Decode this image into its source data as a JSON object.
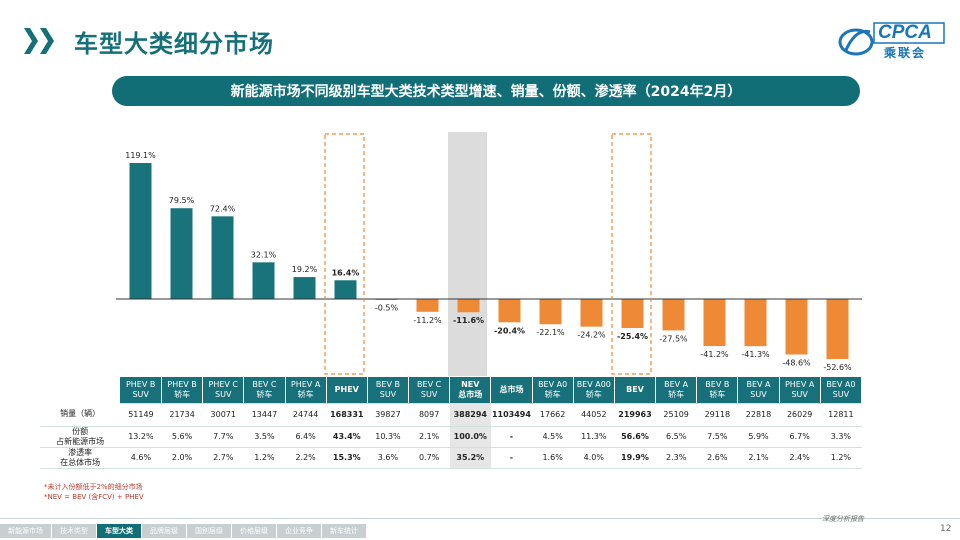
{
  "header": {
    "title": "车型大类细分市场"
  },
  "logo": {
    "text": "CPCA",
    "sub": "乘联会",
    "color": "#1a76b8"
  },
  "banner": {
    "text": "新能源市场不同级别车型大类技术类型增速、销量、份额、渗透率（2024年2月）"
  },
  "chart_data": {
    "type": "bar",
    "title": "新能源市场不同级别车型大类技术类型增速、销量、份额、渗透率（2024年2月）",
    "categories": [
      "PHEV B SUV",
      "PHEV B 轿车",
      "PHEV C SUV",
      "BEV C 轿车",
      "PHEV A 轿车",
      "PHEV",
      "BEV B SUV",
      "BEV C SUV",
      "NEV 总市场",
      "总市场",
      "BEV A0 轿车",
      "BEV A00 轿车",
      "BEV",
      "BEV A 轿车",
      "BEV B 轿车",
      "BEV A SUV",
      "PHEV A SUV",
      "BEV A0 SUV"
    ],
    "values": [
      119.1,
      79.5,
      72.4,
      32.1,
      19.2,
      16.4,
      -0.5,
      -11.2,
      -11.6,
      -20.4,
      -22.1,
      -24.2,
      -25.4,
      -27.5,
      -41.2,
      -41.3,
      -48.6,
      -52.6
    ],
    "value_labels": [
      "119.1%",
      "79.5%",
      "72.4%",
      "32.1%",
      "19.2%",
      "16.4%",
      "-0.5%",
      "-11.2%",
      "-11.6%",
      "-20.4%",
      "-22.1%",
      "-24.2%",
      "-25.4%",
      "-27.5%",
      "-41.2%",
      "-41.3%",
      "-48.6%",
      "-52.6%"
    ],
    "bold_labels": [
      5,
      8,
      9,
      12
    ],
    "highlight_dashed": [
      5,
      12
    ],
    "highlight_shaded": [
      8
    ],
    "positive_color": "#18737b",
    "negative_color": "#ee8a35",
    "grid": false,
    "legend": "none"
  },
  "table": {
    "headers": [
      [
        "PHEV B",
        "SUV"
      ],
      [
        "PHEV B",
        "轿车"
      ],
      [
        "PHEV C",
        "SUV"
      ],
      [
        "BEV C",
        "轿车"
      ],
      [
        "PHEV A",
        "轿车"
      ],
      [
        "PHEV"
      ],
      [
        "BEV B",
        "SUV"
      ],
      [
        "BEV C",
        "SUV"
      ],
      [
        "NEV",
        "总市场"
      ],
      [
        "总市场"
      ],
      [
        "BEV A0",
        "轿车"
      ],
      [
        "BEV A00",
        "轿车"
      ],
      [
        "BEV"
      ],
      [
        "BEV A",
        "轿车"
      ],
      [
        "BEV B",
        "轿车"
      ],
      [
        "BEV A",
        "SUV"
      ],
      [
        "PHEV A",
        "SUV"
      ],
      [
        "BEV A0",
        "SUV"
      ]
    ],
    "bold_columns": [
      5,
      8,
      9,
      12
    ],
    "rows": [
      {
        "label": [
          "销量（辆）"
        ],
        "cells": [
          "51149",
          "21734",
          "30071",
          "13447",
          "24744",
          "168331",
          "39827",
          "8097",
          "388294",
          "1103494",
          "17662",
          "44052",
          "219963",
          "25109",
          "29118",
          "22818",
          "26029",
          "12811"
        ]
      },
      {
        "label": [
          "份额",
          "占新能源市场"
        ],
        "cells": [
          "13.2%",
          "5.6%",
          "7.7%",
          "3.5%",
          "6.4%",
          "43.4%",
          "10.3%",
          "2.1%",
          "100.0%",
          "-",
          "4.5%",
          "11.3%",
          "56.6%",
          "6.5%",
          "7.5%",
          "5.9%",
          "6.7%",
          "3.3%"
        ]
      },
      {
        "label": [
          "渗透率",
          "在总体市场"
        ],
        "cells": [
          "4.6%",
          "2.0%",
          "2.7%",
          "1.2%",
          "2.2%",
          "15.3%",
          "3.6%",
          "0.7%",
          "35.2%",
          "-",
          "1.6%",
          "4.0%",
          "19.9%",
          "2.3%",
          "2.6%",
          "2.1%",
          "2.4%",
          "1.2%"
        ]
      }
    ]
  },
  "notes": [
    "*未计入份额低于2%的细分市场",
    "*NEV = BEV (含FCV) + PHEV"
  ],
  "footer": {
    "tagline": "深度分析报告",
    "page_number": "12",
    "nav": [
      {
        "label": "新能源市场",
        "active": false
      },
      {
        "label": "技术类型",
        "active": false
      },
      {
        "label": "车型大类",
        "active": true
      },
      {
        "label": "品牌层级",
        "active": false
      },
      {
        "label": "国别层级",
        "active": false
      },
      {
        "label": "价格层级",
        "active": false
      },
      {
        "label": "企业竞争",
        "active": false
      },
      {
        "label": "新车统计",
        "active": false
      }
    ]
  }
}
